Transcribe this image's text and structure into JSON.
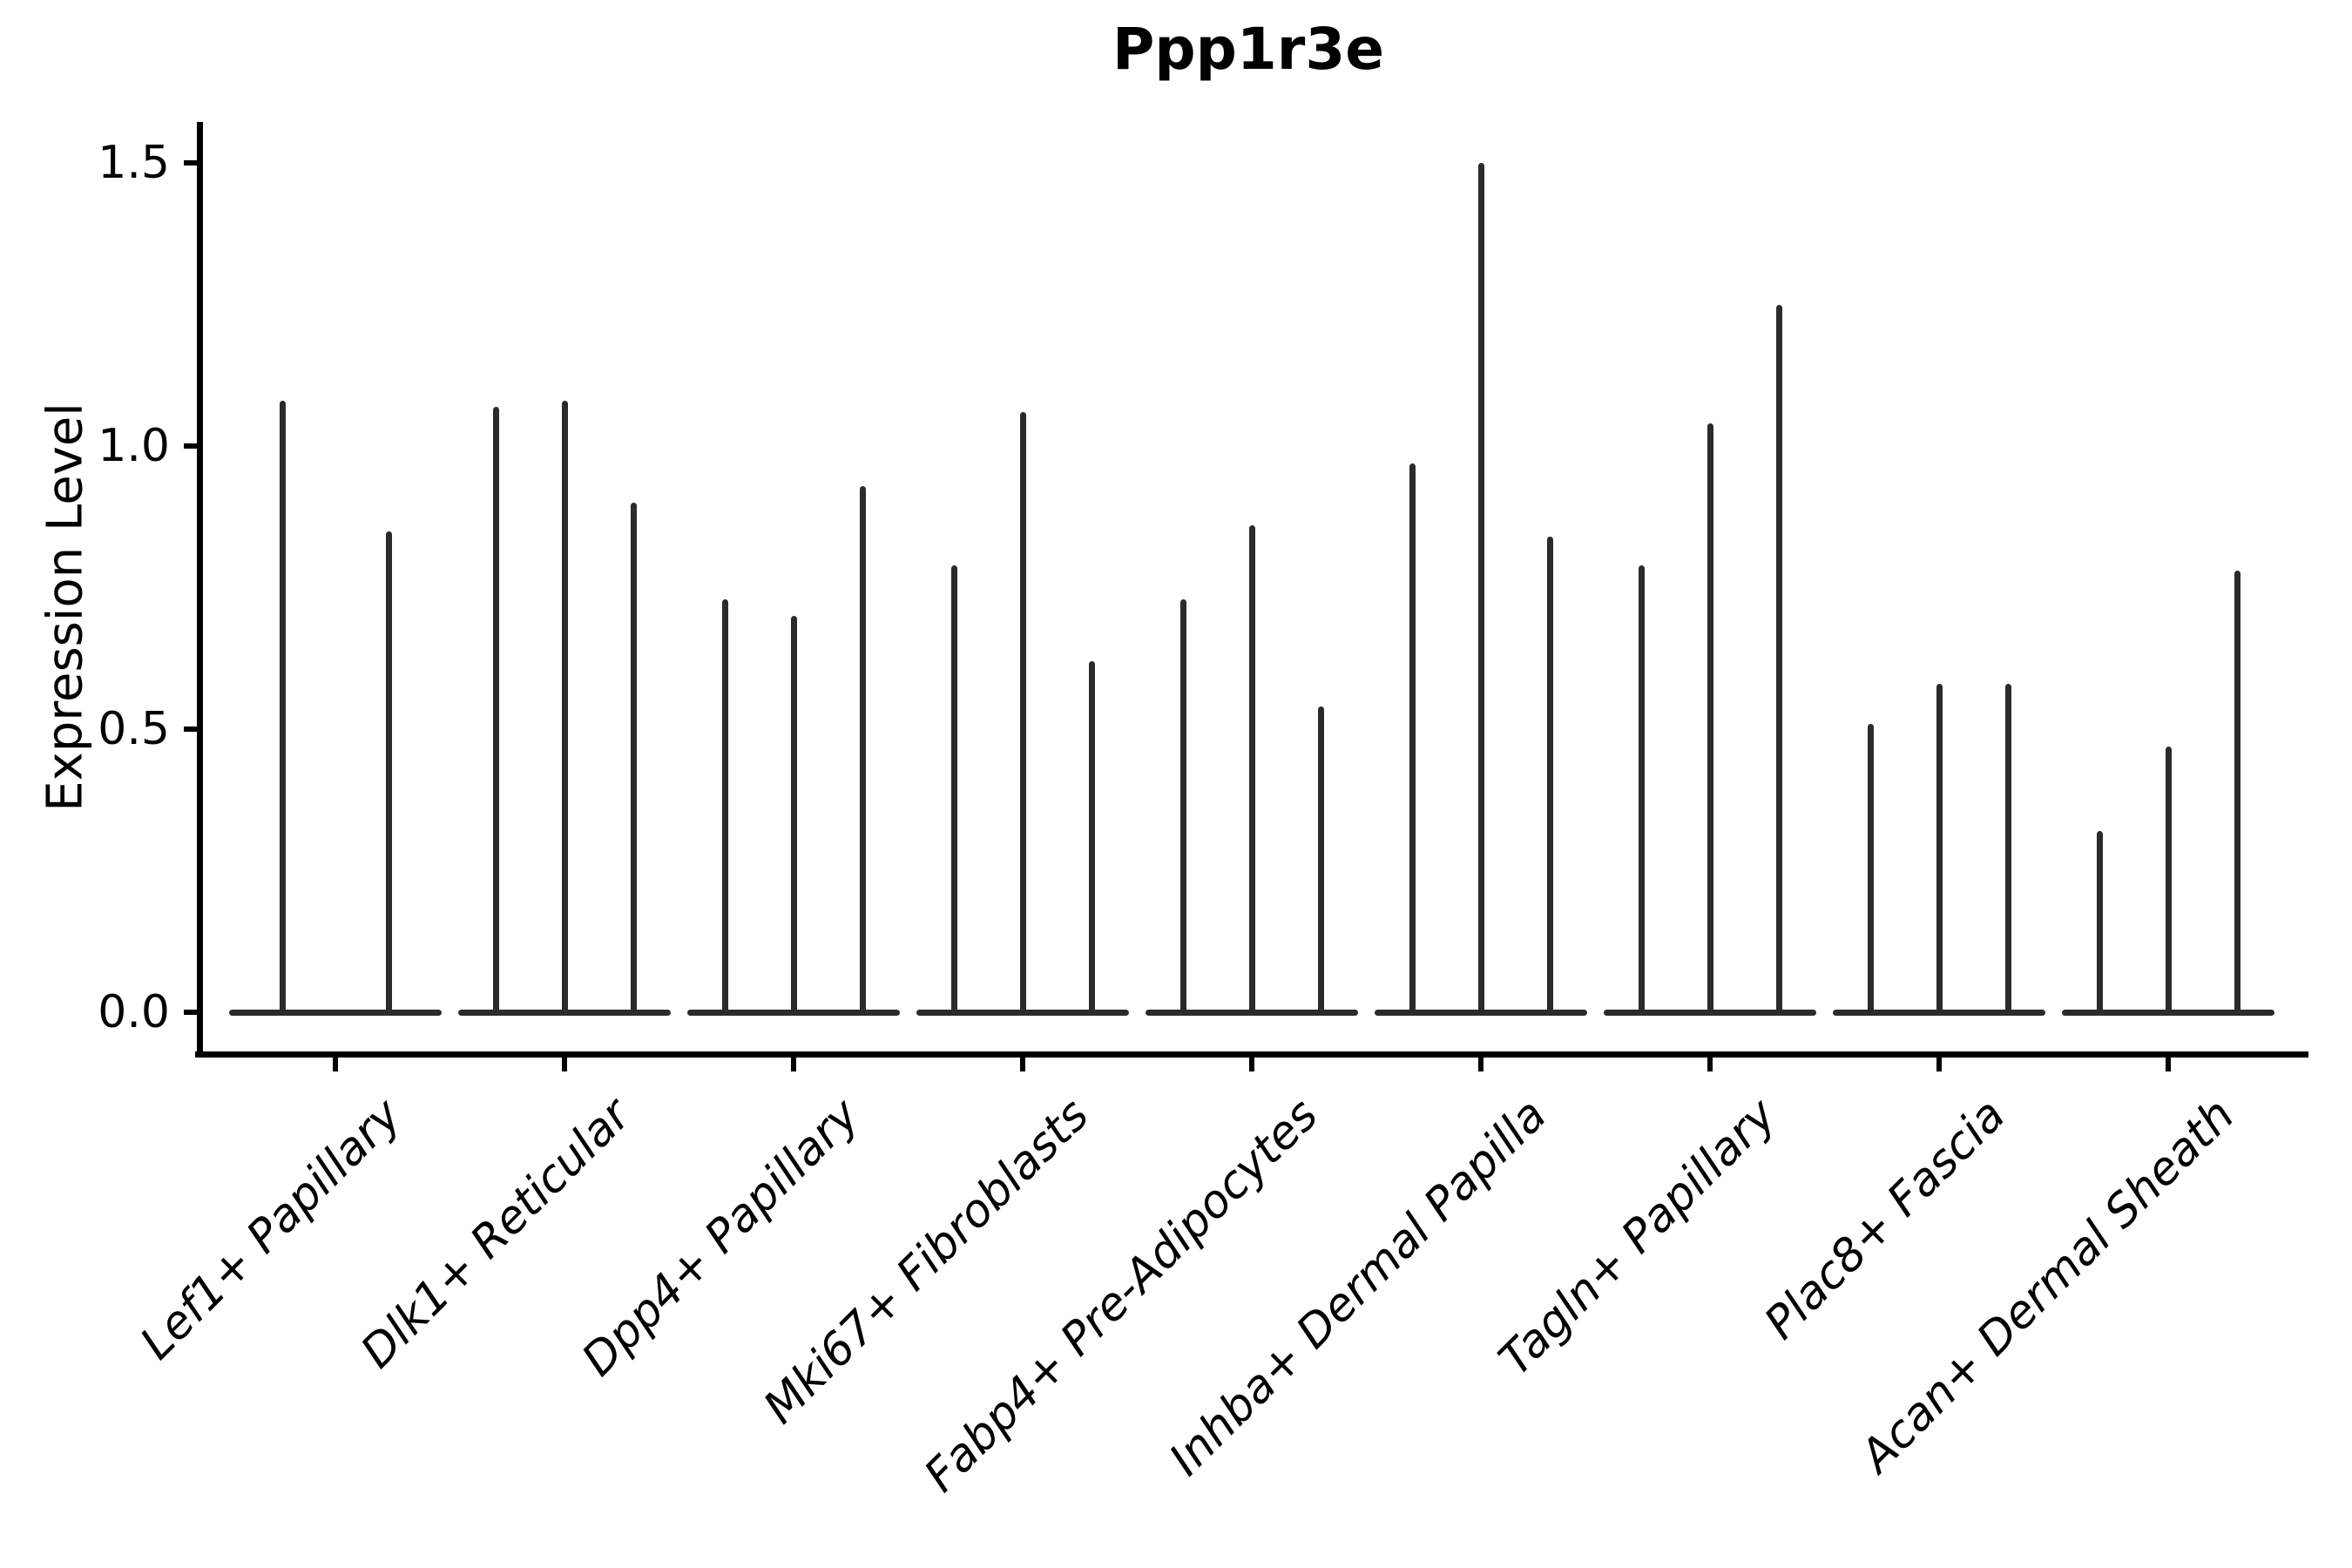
{
  "chart_data": {
    "type": "violin",
    "title": "Ppp1r3e",
    "ylabel": "Expression Level",
    "xlabel": "",
    "yticks": [
      "0.0",
      "0.5",
      "1.0",
      "1.5"
    ],
    "ytick_values": [
      0.0,
      0.5,
      1.0,
      1.5
    ],
    "ylim": [
      -0.075,
      1.575
    ],
    "grid": "off",
    "legend": "none",
    "categories": [
      "Lef1+ Papillary",
      "Dlk1+ Reticular",
      "Dpp4+ Papillary",
      "Mki67+ Fibroblasts",
      "Fabp4+ Pre-Adipocytes",
      "Inhba+ Dermal Papilla",
      "Tagln+ Papillary",
      "Plac8+ Fascia",
      "Acan+ Dermal Sheath"
    ],
    "series": [
      {
        "name": "Lef1+ Papillary",
        "spike_values": [
          1.08,
          0.85
        ]
      },
      {
        "name": "Dlk1+ Reticular",
        "spike_values": [
          1.07,
          1.08,
          0.9
        ]
      },
      {
        "name": "Dpp4+ Papillary",
        "spike_values": [
          0.73,
          0.7,
          0.93
        ]
      },
      {
        "name": "Mki67+ Fibroblasts",
        "spike_values": [
          0.79,
          1.06,
          0.62
        ]
      },
      {
        "name": "Fabp4+ Pre-Adipocytes",
        "spike_values": [
          0.73,
          0.86,
          0.54
        ]
      },
      {
        "name": "Inhba+ Dermal Papilla",
        "spike_values": [
          0.97,
          1.5,
          0.84
        ]
      },
      {
        "name": "Tagln+ Papillary",
        "spike_values": [
          0.79,
          1.04,
          1.25
        ]
      },
      {
        "name": "Plac8+ Fascia",
        "spike_values": [
          0.51,
          0.58,
          0.58
        ]
      },
      {
        "name": "Acan+ Dermal Sheath",
        "spike_values": [
          0.32,
          0.47,
          0.78
        ]
      }
    ],
    "colors": {
      "violin_stroke": "#2b2b2b",
      "axis": "#000000",
      "text": "#000000",
      "background": "#ffffff"
    }
  }
}
